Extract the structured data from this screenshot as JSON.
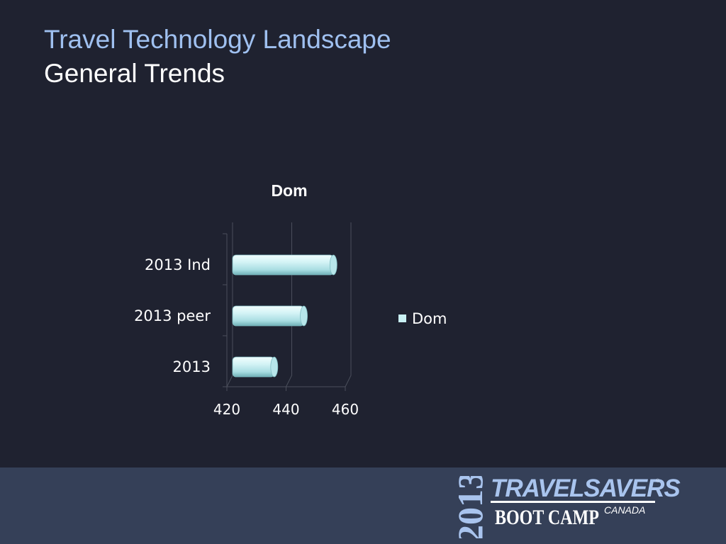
{
  "slide": {
    "title": "Travel Technology Landscape",
    "subtitle": "General Trends"
  },
  "chart_data": {
    "type": "bar",
    "orientation": "horizontal",
    "style": "3d-cylinder",
    "title": "Dom",
    "categories": [
      "2013",
      "2013 peer",
      "2013 Ind"
    ],
    "series": [
      {
        "name": "Dom",
        "values": [
          436,
          446,
          456
        ],
        "color": "#c9f1f4"
      }
    ],
    "xlim": [
      420,
      460
    ],
    "xticks": [
      "420",
      "440",
      "460"
    ],
    "legend_position": "right",
    "grid": true
  },
  "logo": {
    "year": "2013",
    "brand": "TRAVELSAVERS",
    "registered": "®",
    "event": "BOOT CAMP",
    "country": "CANADA"
  },
  "colors": {
    "background": "#1f2230",
    "footer": "#354058",
    "title": "#9fc0f0",
    "subtitle": "#ffffff",
    "axis_text": "#ffffff",
    "gridline": "#4b4e5b"
  }
}
